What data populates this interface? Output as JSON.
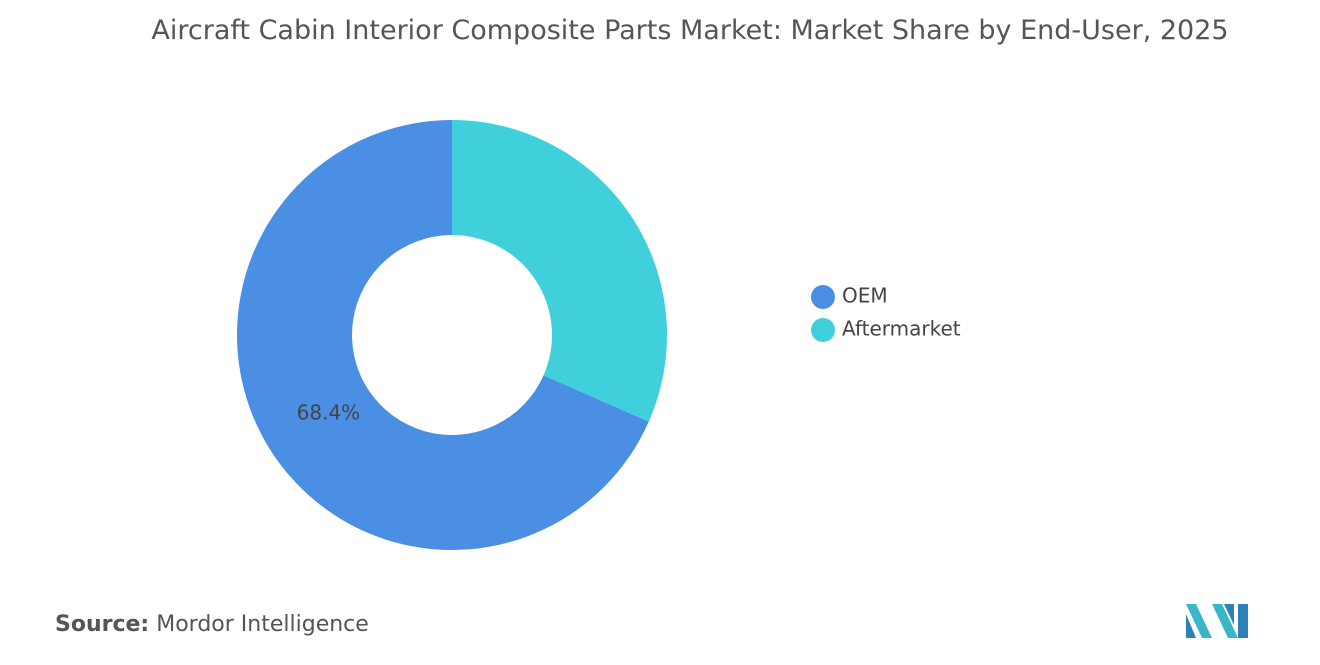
{
  "chart_data": {
    "type": "donut",
    "title": "Aircraft Cabin Interior Composite Parts Market: Market Share by End-User, 2025",
    "categories": [
      "OEM",
      "Aftermarket"
    ],
    "values": [
      68.4,
      31.6
    ],
    "value_labels": [
      "68.4%",
      null
    ],
    "colors": [
      "#4a8fe3",
      "#40d0db"
    ],
    "legend": "right"
  },
  "source": {
    "label": "Source:",
    "text": "Mordor Intelligence"
  }
}
